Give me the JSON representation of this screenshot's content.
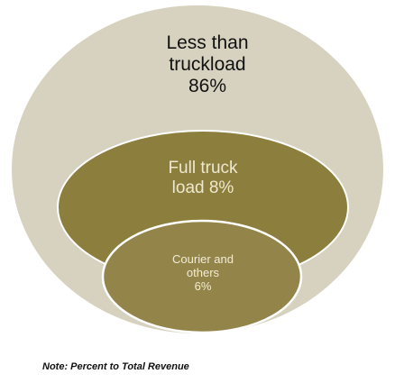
{
  "diagram": {
    "outer": {
      "lines": [
        "Less than",
        "truckload",
        "86%"
      ],
      "fill": "#d7d2bf"
    },
    "middle": {
      "lines": [
        "Full truck",
        "load 8%"
      ],
      "fill": "#8c7e3c"
    },
    "inner": {
      "lines": [
        "Courier and",
        "others",
        "6%"
      ],
      "fill": "#938549"
    },
    "stroke": "#ffffff"
  },
  "note": "Note: Percent to Total Revenue"
}
